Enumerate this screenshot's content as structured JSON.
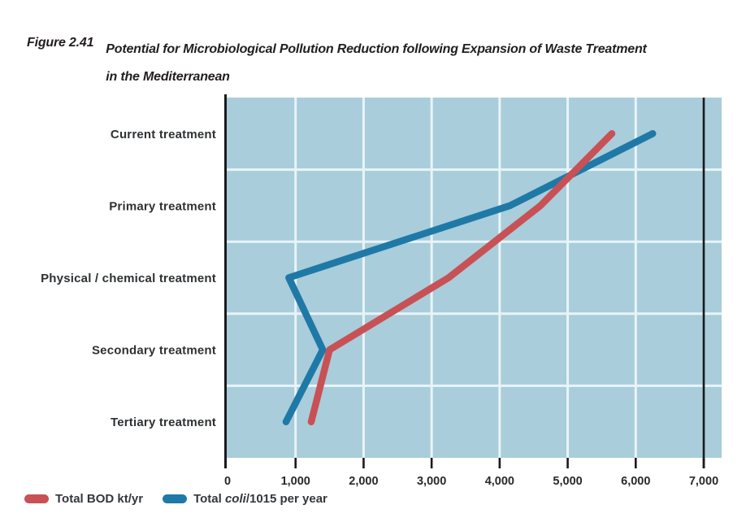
{
  "figure": {
    "label": "Figure 2.41",
    "title_line1": "Potential for Microbiological Pollution Reduction following Expansion of Waste Treatment",
    "title_line2": "in the Mediterranean"
  },
  "chart_data": {
    "type": "line",
    "orientation": "horizontal-categories",
    "title": "Potential for Microbiological Pollution Reduction following Expansion of Waste Treatment in the Mediterranean",
    "categories": [
      "Current treatment",
      "Primary treatment",
      "Physical / chemical treatment",
      "Secondary treatment",
      "Tertiary treatment"
    ],
    "series": [
      {
        "id": "bod",
        "name": "Total BOD kt/yr",
        "color": "#c85156",
        "values": [
          5650,
          4600,
          3250,
          1500,
          1230
        ]
      },
      {
        "id": "coli",
        "name": "Total coli/1015 per year",
        "color": "#1f79a7",
        "values": [
          6250,
          4150,
          900,
          1400,
          860
        ]
      }
    ],
    "x_axis": {
      "min": 0,
      "max": 7000,
      "tick_interval": 1000,
      "tick_labels": [
        "0",
        "1,000",
        "2,000",
        "3,000",
        "4,000",
        "5,000",
        "6,000",
        "7,000"
      ]
    },
    "grid": true,
    "plot_background": "#a9cdda",
    "gridline_color": "#e9f4f7",
    "axis_color": "#1a1a1a",
    "reference_line_x": 7000,
    "legend_position": "bottom-left"
  },
  "legend": {
    "bod_label": "Total BOD kt/yr",
    "coli_prefix": "Total ",
    "coli_italic": "coli",
    "coli_suffix": "/1015 per year"
  },
  "colors": {
    "text": "#2b292a",
    "category_label": "#2e3133",
    "title": "#221e1f",
    "background": "#ffffff"
  }
}
